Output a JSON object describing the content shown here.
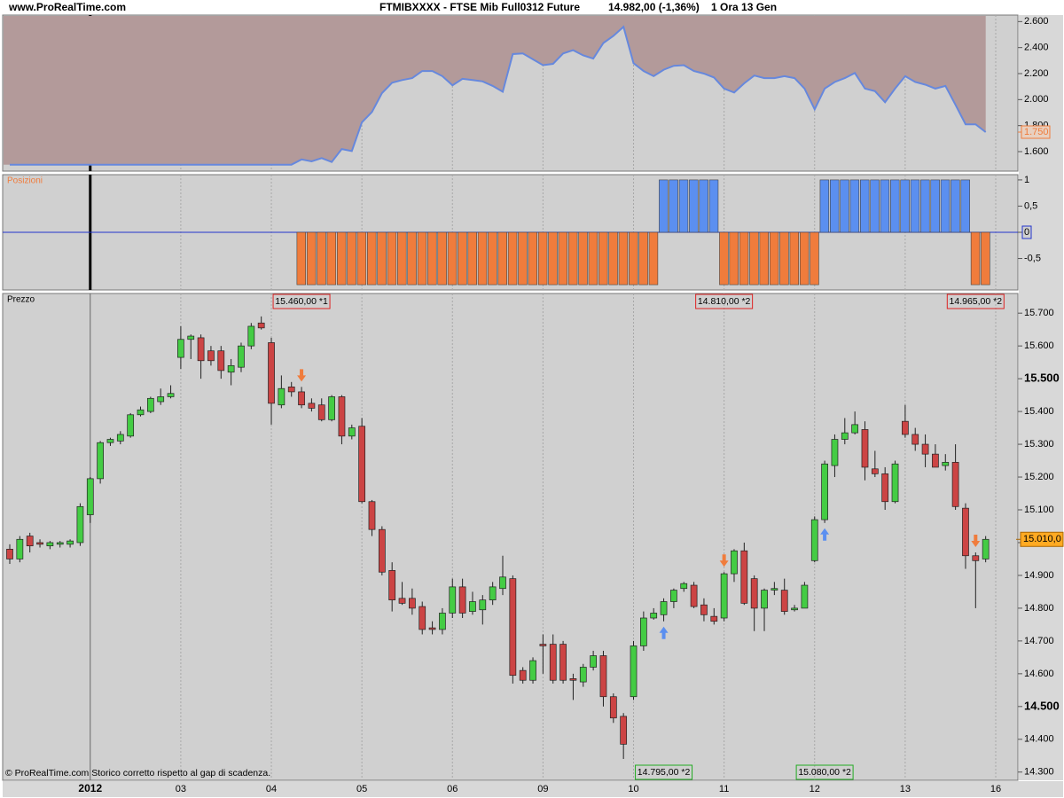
{
  "header": {
    "site": "www.ProRealTime.com",
    "instrument": "FTMIBXXXX - FTSE Mib Full0312 Future",
    "quote": "14.982,00 (-1,36%)",
    "period": "1 Ora  13 Gen"
  },
  "footer": "© ProRealTime.com  Storico corretto rispetto al gap di scadenza.",
  "chart_data": [
    {
      "type": "area",
      "line_color": "#6688dd",
      "fill_color": "#b39a9a",
      "values": [
        1500,
        1500,
        1500,
        1500,
        1500,
        1500,
        1500,
        1500,
        1500,
        1500,
        1500,
        1500,
        1500,
        1500,
        1500,
        1500,
        1500,
        1500,
        1500,
        1500,
        1500,
        1500,
        1500,
        1500,
        1500,
        1500,
        1500,
        1500,
        1500,
        1540,
        1525,
        1550,
        1520,
        1620,
        1605,
        1825,
        1905,
        2050,
        2130,
        2150,
        2165,
        2220,
        2220,
        2180,
        2110,
        2160,
        2150,
        2140,
        2105,
        2060,
        2350,
        2355,
        2310,
        2265,
        2275,
        2355,
        2380,
        2340,
        2315,
        2435,
        2490,
        2560,
        2280,
        2220,
        2180,
        2230,
        2260,
        2265,
        2220,
        2200,
        2170,
        2085,
        2055,
        2125,
        2185,
        2165,
        2165,
        2180,
        2165,
        2085,
        1925,
        2085,
        2135,
        2165,
        2205,
        2085,
        2065,
        1980,
        2085,
        2180,
        2135,
        2115,
        2085,
        2105,
        1960,
        1810,
        1810,
        1750,
        null
      ],
      "ylim": [
        1450,
        2650
      ],
      "yticks": [
        {
          "value": 1600,
          "label": "1.600"
        },
        {
          "value": 1800,
          "label": "1.800"
        },
        {
          "value": 2000,
          "label": "2.000"
        },
        {
          "value": 2200,
          "label": "2.200"
        },
        {
          "value": 2400,
          "label": "2.400"
        },
        {
          "value": 2600,
          "label": "2.600"
        }
      ],
      "last_label": {
        "value": 1750,
        "label": "1.750"
      }
    },
    {
      "type": "position-bar",
      "title": "Posizioni",
      "long_color": "#5b8ff0",
      "short_color": "#f07c3c",
      "values": [
        0,
        0,
        0,
        0,
        0,
        0,
        0,
        0,
        0,
        0,
        0,
        0,
        0,
        0,
        0,
        0,
        0,
        0,
        0,
        0,
        0,
        0,
        0,
        0,
        0,
        0,
        0,
        0,
        0,
        -1,
        -1,
        -1,
        -1,
        -1,
        -1,
        -1,
        -1,
        -1,
        -1,
        -1,
        -1,
        -1,
        -1,
        -1,
        -1,
        -1,
        -1,
        -1,
        -1,
        -1,
        -1,
        -1,
        -1,
        -1,
        -1,
        -1,
        -1,
        -1,
        -1,
        -1,
        -1,
        -1,
        -1,
        -1,
        -1,
        1,
        1,
        1,
        1,
        1,
        1,
        -1,
        -1,
        -1,
        -1,
        -1,
        -1,
        -1,
        -1,
        -1,
        -1,
        1,
        1,
        1,
        1,
        1,
        1,
        1,
        1,
        1,
        1,
        1,
        1,
        1,
        1,
        1,
        -1,
        -1,
        null
      ],
      "ylim": [
        -1.1,
        1.1
      ],
      "yticks": [
        1,
        {
          "value": 0.5,
          "label": "0,5"
        },
        0,
        {
          "value": -0.5,
          "label": "-0,5"
        }
      ]
    },
    {
      "type": "candlestick",
      "title": "Prezzo",
      "up_color": "#44cc44",
      "down_color": "#cc4444",
      "categories": [
        null,
        null,
        null,
        null,
        null,
        null,
        null,
        null,
        "2012",
        null,
        null,
        null,
        null,
        null,
        null,
        null,
        null,
        "03",
        null,
        null,
        null,
        null,
        null,
        null,
        null,
        null,
        "04",
        null,
        null,
        null,
        null,
        null,
        null,
        null,
        null,
        "05",
        null,
        null,
        null,
        null,
        null,
        null,
        null,
        null,
        "06",
        null,
        null,
        null,
        null,
        null,
        null,
        null,
        null,
        "09",
        null,
        null,
        null,
        null,
        null,
        null,
        null,
        null,
        "10",
        null,
        null,
        null,
        null,
        null,
        null,
        null,
        null,
        "11",
        null,
        null,
        null,
        null,
        null,
        null,
        null,
        null,
        "12",
        null,
        null,
        null,
        null,
        null,
        null,
        null,
        null,
        "13",
        null,
        null,
        null,
        null,
        null,
        null,
        null,
        null,
        "16"
      ],
      "open": [
        14980,
        14950,
        15020,
        15000,
        14990,
        14995,
        14995,
        15000,
        15085,
        15195,
        15305,
        15310,
        15325,
        15390,
        15400,
        15430,
        15445,
        15565,
        15620,
        15625,
        15585,
        15585,
        15520,
        15535,
        15600,
        15670,
        15610,
        15420,
        15475,
        15460,
        15425,
        15420,
        15375,
        15445,
        15325,
        15355,
        15125,
        15040,
        14915,
        14830,
        14830,
        14805,
        14740,
        14735,
        14785,
        14865,
        14790,
        14795,
        14825,
        14860,
        14890,
        14610,
        14580,
        14690,
        14690,
        14690,
        14585,
        14575,
        14620,
        14655,
        14530,
        14470,
        14530,
        14685,
        14770,
        14780,
        14820,
        14860,
        14870,
        14810,
        14775,
        14770,
        14905,
        14975,
        14890,
        14800,
        14855,
        14855,
        14795,
        14800,
        14945,
        15070,
        15235,
        15315,
        15335,
        15345,
        15225,
        15210,
        15125,
        15370,
        15330,
        15300,
        15270,
        15235,
        15245,
        15105,
        14960,
        14950,
        null
      ],
      "high": [
        14995,
        15020,
        15030,
        15010,
        15005,
        15005,
        15010,
        15120,
        15200,
        15310,
        15320,
        15340,
        15395,
        15415,
        15445,
        15470,
        15480,
        15660,
        15635,
        15635,
        15600,
        15600,
        15560,
        15610,
        15670,
        15690,
        15625,
        15510,
        15490,
        15475,
        15440,
        15440,
        15450,
        15450,
        15360,
        15380,
        15130,
        15050,
        14940,
        14880,
        14860,
        14820,
        14760,
        14800,
        14890,
        14890,
        14850,
        14840,
        14880,
        14960,
        14900,
        14620,
        14650,
        14720,
        14720,
        14700,
        14600,
        14630,
        14670,
        14670,
        14540,
        14480,
        14700,
        14790,
        14800,
        14830,
        14860,
        14880,
        14880,
        14830,
        14800,
        14910,
        14980,
        15000,
        14900,
        14860,
        14880,
        14890,
        14810,
        14880,
        15080,
        15250,
        15330,
        15380,
        15400,
        15370,
        15280,
        15230,
        15250,
        15420,
        15350,
        15330,
        15300,
        15270,
        15300,
        15120,
        14970,
        15020,
        null
      ],
      "low": [
        14935,
        14940,
        14970,
        14985,
        14980,
        14985,
        14985,
        14990,
        15060,
        15180,
        15295,
        15300,
        15320,
        15385,
        15395,
        15420,
        15440,
        15530,
        15560,
        15500,
        15540,
        15500,
        15480,
        15520,
        15590,
        15650,
        15360,
        15410,
        15445,
        15410,
        15400,
        15370,
        15370,
        15300,
        15315,
        15120,
        15020,
        14900,
        14790,
        14810,
        14780,
        14720,
        14720,
        14720,
        14770,
        14770,
        14780,
        14750,
        14810,
        14840,
        14570,
        14570,
        14570,
        14600,
        14570,
        14570,
        14520,
        14560,
        14610,
        14500,
        14450,
        14340,
        14520,
        14670,
        14765,
        14760,
        14800,
        14850,
        14800,
        14760,
        14750,
        14760,
        14880,
        14810,
        14730,
        14730,
        14840,
        14780,
        14790,
        14800,
        14940,
        15060,
        15200,
        15300,
        15330,
        15190,
        15200,
        15100,
        15120,
        15320,
        15280,
        15230,
        15230,
        15220,
        15100,
        14920,
        14800,
        14940,
        null
      ],
      "close": [
        14950,
        15010,
        14990,
        14995,
        15000,
        15000,
        15005,
        15110,
        15195,
        15305,
        15315,
        15330,
        15390,
        15405,
        15440,
        15445,
        15455,
        15620,
        15630,
        15555,
        15555,
        15525,
        15540,
        15600,
        15660,
        15655,
        15425,
        15470,
        15460,
        15420,
        15410,
        15375,
        15445,
        15325,
        15350,
        15125,
        15040,
        14910,
        14825,
        14815,
        14800,
        14735,
        14735,
        14785,
        14865,
        14785,
        14820,
        14825,
        14865,
        14895,
        14595,
        14580,
        14640,
        14685,
        14580,
        14580,
        14580,
        14620,
        14655,
        14530,
        14465,
        14385,
        14685,
        14770,
        14785,
        14820,
        14855,
        14875,
        14805,
        14780,
        14760,
        14905,
        14975,
        14815,
        14800,
        14855,
        14860,
        14790,
        14800,
        14870,
        15070,
        15240,
        15315,
        15335,
        15360,
        15230,
        15210,
        15125,
        15240,
        15330,
        15300,
        15270,
        15230,
        15245,
        15110,
        14960,
        14945,
        15010,
        null
      ],
      "ylim": [
        14275,
        15760
      ],
      "yticks": [
        {
          "value": 14300,
          "label": "14.300"
        },
        {
          "value": 14400,
          "label": "14.400"
        },
        {
          "value": 14500,
          "label": "14.500"
        },
        {
          "value": 14600,
          "label": "14.600"
        },
        {
          "value": 14700,
          "label": "14.700"
        },
        {
          "value": 14800,
          "label": "14.800"
        },
        {
          "value": 14900,
          "label": "14.900"
        },
        {
          "value": 15000,
          "label": "15.000"
        },
        {
          "value": 15100,
          "label": "15.100"
        },
        {
          "value": 15200,
          "label": "15.200"
        },
        {
          "value": 15300,
          "label": "15.300"
        },
        {
          "value": 15400,
          "label": "15.400"
        },
        {
          "value": 15500,
          "label": "15.500"
        },
        {
          "value": 15600,
          "label": "15.600"
        },
        {
          "value": 15700,
          "label": "15.700"
        }
      ],
      "last_label": {
        "value": 15010,
        "label": "15.010,0"
      },
      "sell_color": "#f07c3c",
      "buy_color": "#5b8ff0",
      "sell_box_color": "#dd2222",
      "buy_box_color": "#22aa22",
      "trades": [
        {
          "index": 29,
          "value": 15460,
          "label": "15.460,00 *1"
        },
        {
          "index": 65,
          "value": 14795,
          "label": "14.795,00 *2"
        },
        {
          "index": 71,
          "value": 14810,
          "label": "14.810,00 *2"
        },
        {
          "index": 81,
          "value": 15080,
          "label": "15.080,00 *2"
        },
        {
          "index": 96,
          "value": 14965,
          "label": "14.965,00 *2"
        }
      ]
    }
  ]
}
